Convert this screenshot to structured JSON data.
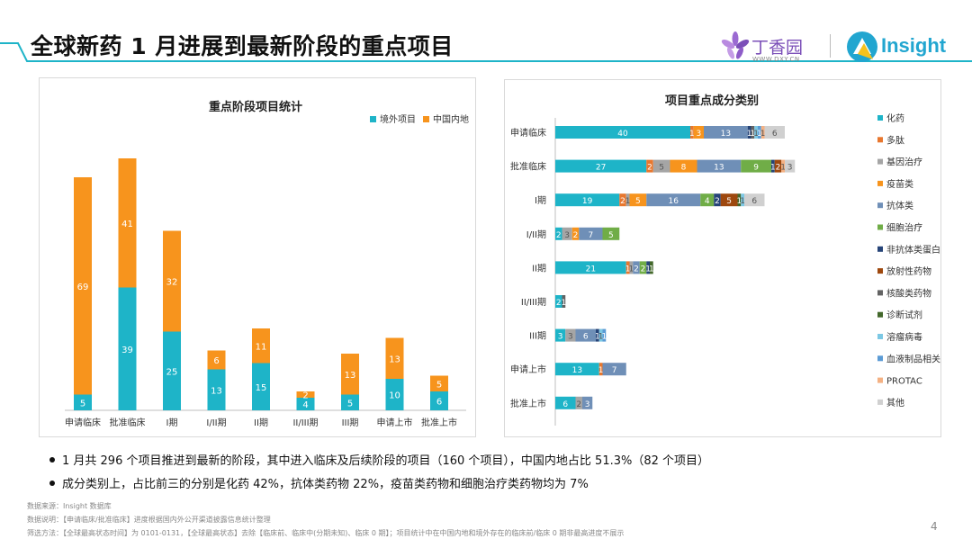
{
  "page": {
    "title": "全球新药 1 月进展到最新阶段的重点项目",
    "page_number": "4"
  },
  "logos": {
    "dxy_text": "丁香园",
    "dxy_url": "WWW.DXY.CN",
    "insight_text": "Insight",
    "dxy_color": "#7b4fb8",
    "insight_color": "#22a6d0"
  },
  "watermark": "Insight",
  "colors": {
    "accent": "#1eb4c8",
    "orange": "#f7941d",
    "header_line": "#1eb4c8"
  },
  "chart_data": [
    {
      "type": "bar",
      "stacked": true,
      "title": "重点阶段项目统计",
      "categories": [
        "申请临床",
        "批准临床",
        "I期",
        "I/II期",
        "II期",
        "II/III期",
        "III期",
        "申请上市",
        "批准上市"
      ],
      "series": [
        {
          "name": "境外项目",
          "color": "#1eb4c8",
          "values": [
            5,
            39,
            25,
            13,
            15,
            4,
            5,
            10,
            6
          ]
        },
        {
          "name": "中国内地",
          "color": "#f7941d",
          "values": [
            69,
            41,
            32,
            6,
            11,
            2,
            13,
            13,
            5
          ]
        }
      ],
      "ylim": [
        0,
        80
      ],
      "legend_position": "top-right",
      "grid": false
    },
    {
      "type": "bar",
      "orientation": "horizontal",
      "stacked": true,
      "title": "项目重点成分类别",
      "categories": [
        "申请临床",
        "批准临床",
        "I期",
        "I/II期",
        "II期",
        "II/III期",
        "III期",
        "申请上市",
        "批准上市"
      ],
      "series": [
        {
          "name": "化药",
          "color": "#1eb4c8",
          "values": [
            40,
            27,
            19,
            2,
            21,
            2,
            3,
            13,
            6
          ]
        },
        {
          "name": "多肽",
          "color": "#e8772e",
          "values": [
            1,
            2,
            2,
            0,
            1,
            0,
            0,
            1,
            0
          ]
        },
        {
          "name": "基因治疗",
          "color": "#a5a5a5",
          "values": [
            0,
            5,
            1,
            3,
            1,
            0,
            3,
            0,
            2
          ]
        },
        {
          "name": "疫苗类",
          "color": "#f7941d",
          "values": [
            3,
            8,
            5,
            2,
            0,
            0,
            0,
            0,
            0
          ]
        },
        {
          "name": "抗体类",
          "color": "#6f8fb7",
          "values": [
            13,
            13,
            16,
            7,
            2,
            0,
            6,
            7,
            3
          ]
        },
        {
          "name": "细胞治疗",
          "color": "#70ad47",
          "values": [
            0,
            9,
            4,
            5,
            2,
            0,
            0,
            0,
            0
          ]
        },
        {
          "name": "非抗体类蛋白",
          "color": "#264478",
          "values": [
            1,
            1,
            2,
            0,
            1,
            0,
            1,
            0,
            0
          ]
        },
        {
          "name": "放射性药物",
          "color": "#9e480e",
          "values": [
            0,
            2,
            5,
            0,
            0,
            0,
            0,
            0,
            0
          ]
        },
        {
          "name": "核酸类药物",
          "color": "#636363",
          "values": [
            1,
            0,
            0,
            0,
            0,
            1,
            0,
            0,
            0
          ]
        },
        {
          "name": "诊断试剂",
          "color": "#43682b",
          "values": [
            0,
            0,
            1,
            0,
            1,
            0,
            0,
            0,
            0
          ]
        },
        {
          "name": "溶瘤病毒",
          "color": "#7cc8e4",
          "values": [
            1,
            0,
            1,
            0,
            0,
            0,
            1,
            0,
            0
          ]
        },
        {
          "name": "血液制品相关",
          "color": "#5b9bd5",
          "values": [
            1,
            0,
            0,
            0,
            0,
            0,
            1,
            0,
            0
          ]
        },
        {
          "name": "PROTAC",
          "color": "#f4b183",
          "values": [
            1,
            1,
            0,
            0,
            0,
            0,
            0,
            0,
            0
          ]
        },
        {
          "name": "其他",
          "color": "#d0d0d0",
          "values": [
            6,
            3,
            6,
            0,
            0,
            0,
            0,
            0,
            0
          ]
        }
      ],
      "legend_position": "right",
      "grid": false
    }
  ],
  "bullets": [
    "1 月共 296 个项目推进到最新的阶段，其中进入临床及后续阶段的项目（160 个项目），中国内地占比 51.3%（82 个项目）",
    "成分类别上，占比前三的分别是化药 42%，抗体类药物 22%，疫苗类药物和细胞治疗类药物均为 7%"
  ],
  "footnotes": {
    "source": "数据来源：Insight 数据库",
    "note": "数据说明：【申请临床/批准临床】进度根据国内外公开渠道披露信息统计整理",
    "filter": "筛选方法：【全球最高状态时间】为 0101-0131，【全球最高状态】去除【临床前、临床中(分期未知)、临床 0 期】；项目统计中在中国内地和境外存在的临床前/临床 0 期非最高进度不展示"
  }
}
